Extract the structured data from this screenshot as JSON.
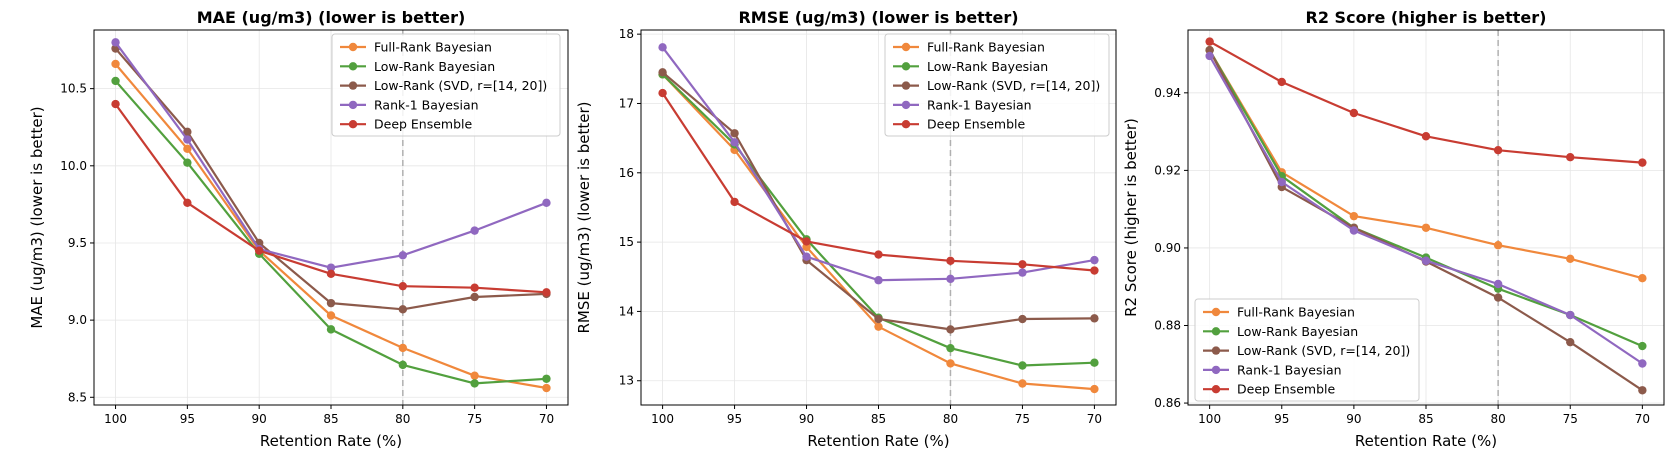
{
  "chart_data": [
    {
      "type": "line",
      "title": "MAE (ug/m3) (lower is better)",
      "xlabel": "Retention Rate (%)",
      "ylabel": "MAE (ug/m3) (lower is better)",
      "x": [
        100,
        95,
        90,
        85,
        80,
        75,
        70
      ],
      "xticks": [
        "100",
        "95",
        "90",
        "85",
        "80",
        "75",
        "70"
      ],
      "xlim": [
        101.5,
        68.5
      ],
      "ylim": [
        8.45,
        10.88
      ],
      "yticks": [
        "8.5",
        "9.0",
        "9.5",
        "10.0",
        "10.5"
      ],
      "ytick_values": [
        8.5,
        9.0,
        9.5,
        10.0,
        10.5
      ],
      "vline_x": 80,
      "legend_position": "upper-right",
      "series": [
        {
          "name": "Full-Rank Bayesian",
          "color": "#F0883C",
          "values": [
            10.66,
            10.11,
            9.45,
            9.03,
            8.82,
            8.64,
            8.56
          ]
        },
        {
          "name": "Low-Rank Bayesian",
          "color": "#52A03E",
          "values": [
            10.55,
            10.02,
            9.43,
            8.94,
            8.71,
            8.59,
            8.62
          ]
        },
        {
          "name": "Low-Rank (SVD, r=[14, 20])",
          "color": "#8C5A4B",
          "values": [
            10.76,
            10.22,
            9.5,
            9.11,
            9.07,
            9.15,
            9.17
          ]
        },
        {
          "name": "Rank-1 Bayesian",
          "color": "#9068C0",
          "values": [
            10.8,
            10.17,
            9.46,
            9.34,
            9.42,
            9.58,
            9.76
          ]
        },
        {
          "name": "Deep Ensemble",
          "color": "#C83C32",
          "values": [
            10.4,
            9.76,
            9.45,
            9.3,
            9.22,
            9.21,
            9.18
          ]
        }
      ]
    },
    {
      "type": "line",
      "title": "RMSE (ug/m3) (lower is better)",
      "xlabel": "Retention Rate (%)",
      "ylabel": "RMSE (ug/m3) (lower is better)",
      "x": [
        100,
        95,
        90,
        85,
        80,
        75,
        70
      ],
      "xticks": [
        "100",
        "95",
        "90",
        "85",
        "80",
        "75",
        "70"
      ],
      "xlim": [
        101.5,
        68.5
      ],
      "ylim": [
        12.65,
        18.06
      ],
      "yticks": [
        "13",
        "14",
        "15",
        "16",
        "17",
        "18"
      ],
      "ytick_values": [
        13,
        14,
        15,
        16,
        17,
        18
      ],
      "vline_x": 80,
      "legend_position": "upper-right",
      "series": [
        {
          "name": "Full-Rank Bayesian",
          "color": "#F0883C",
          "values": [
            17.42,
            16.33,
            14.93,
            13.78,
            13.25,
            12.96,
            12.88
          ]
        },
        {
          "name": "Low-Rank Bayesian",
          "color": "#52A03E",
          "values": [
            17.42,
            16.41,
            15.04,
            13.91,
            13.47,
            13.22,
            13.26
          ]
        },
        {
          "name": "Low-Rank (SVD, r=[14, 20])",
          "color": "#8C5A4B",
          "values": [
            17.45,
            16.57,
            14.74,
            13.89,
            13.74,
            13.89,
            13.9
          ]
        },
        {
          "name": "Rank-1 Bayesian",
          "color": "#9068C0",
          "values": [
            17.81,
            16.44,
            14.79,
            14.45,
            14.47,
            14.56,
            14.74
          ]
        },
        {
          "name": "Deep Ensemble",
          "color": "#C83C32",
          "values": [
            17.15,
            15.58,
            15.01,
            14.82,
            14.73,
            14.68,
            14.59
          ]
        }
      ]
    },
    {
      "type": "line",
      "title": "R2 Score (higher is better)",
      "xlabel": "Retention Rate (%)",
      "ylabel": "R2 Score (higher is better)",
      "x": [
        100,
        95,
        90,
        85,
        80,
        75,
        70
      ],
      "xticks": [
        "100",
        "95",
        "90",
        "85",
        "80",
        "75",
        "70"
      ],
      "xlim": [
        101.5,
        68.5
      ],
      "ylim": [
        0.8595,
        0.9562
      ],
      "yticks": [
        "0.86",
        "0.88",
        "0.90",
        "0.92",
        "0.94"
      ],
      "ytick_values": [
        0.86,
        0.88,
        0.9,
        0.92,
        0.94
      ],
      "vline_x": 80,
      "legend_position": "lower-left",
      "series": [
        {
          "name": "Full-Rank Bayesian",
          "color": "#F0883C",
          "values": [
            0.951,
            0.9195,
            0.9082,
            0.9052,
            0.9007,
            0.8972,
            0.8922
          ]
        },
        {
          "name": "Low-Rank Bayesian",
          "color": "#52A03E",
          "values": [
            0.951,
            0.9185,
            0.9052,
            0.8975,
            0.8895,
            0.8827,
            0.8747
          ]
        },
        {
          "name": "Low-Rank (SVD, r=[14, 20])",
          "color": "#8C5A4B",
          "values": [
            0.951,
            0.9157,
            0.9052,
            0.8965,
            0.8872,
            0.8757,
            0.8633
          ]
        },
        {
          "name": "Rank-1 Bayesian",
          "color": "#9068C0",
          "values": [
            0.9495,
            0.917,
            0.9045,
            0.8967,
            0.8907,
            0.8827,
            0.8702
          ]
        },
        {
          "name": "Deep Ensemble",
          "color": "#C83C32",
          "values": [
            0.9532,
            0.9428,
            0.9348,
            0.9288,
            0.9252,
            0.9234,
            0.922
          ]
        }
      ]
    }
  ]
}
